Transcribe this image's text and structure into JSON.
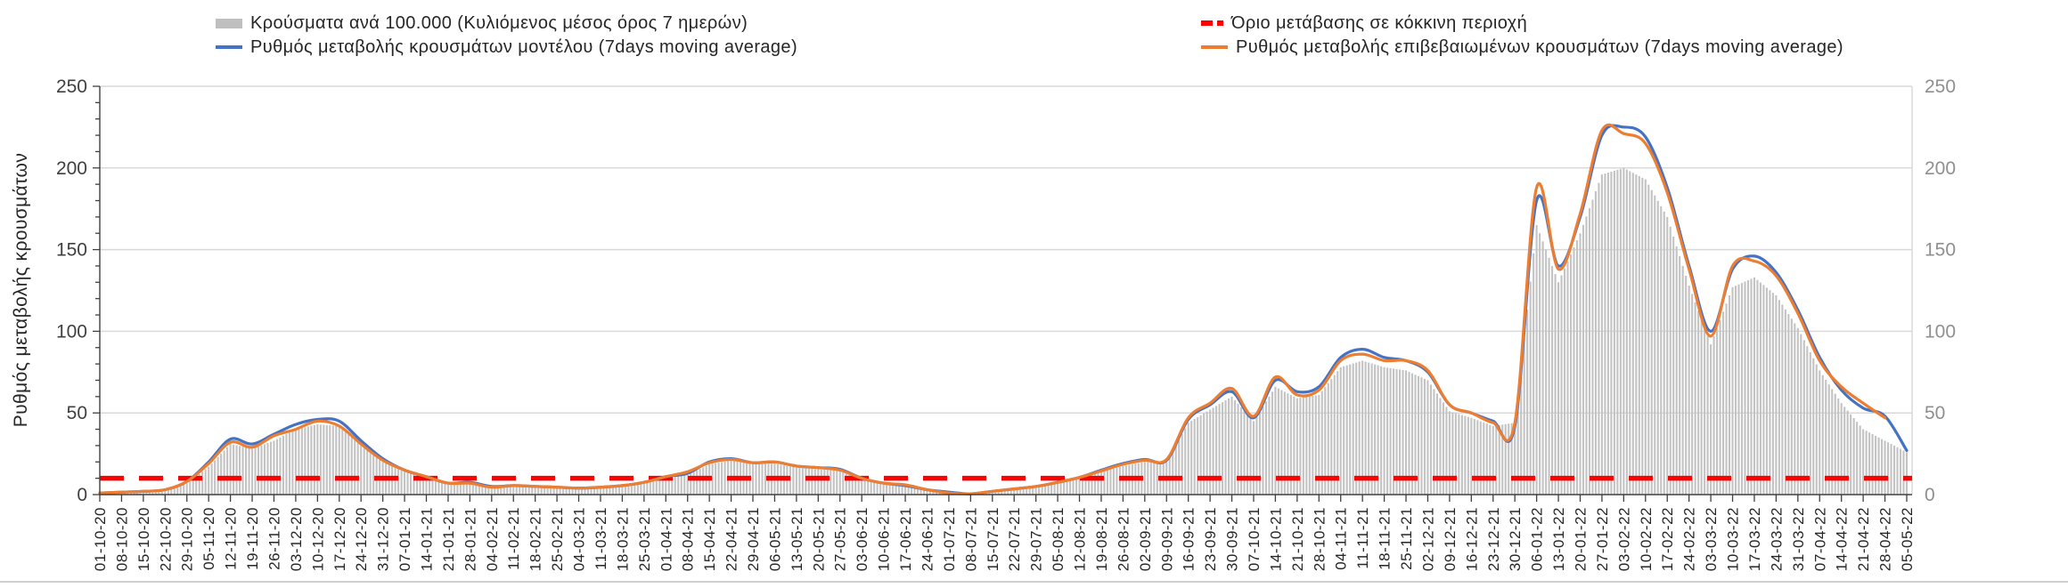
{
  "legend": {
    "items": [
      {
        "id": "cases-bars",
        "label": "Κρούσματα ανά 100.000 (Κυλιόμενος μέσος όρος 7 ημερών)",
        "swatch": "gray-bar",
        "color": "#BFBFBF"
      },
      {
        "id": "red-threshold",
        "label": "Όριο μετάβασης σε κόκκινη περιοχή",
        "swatch": "red-dashes",
        "color": "#FF0000"
      },
      {
        "id": "model-line",
        "label": "Ρυθμός μεταβολής κρουσμάτων μοντέλου (7days moving average)",
        "swatch": "blue-line",
        "color": "#4472C4"
      },
      {
        "id": "confirmed-line",
        "label": "Ρυθμός μεταβολής επιβεβαιωμένων κρουσμάτων (7days moving average)",
        "swatch": "orange-line",
        "color": "#ED7D31"
      }
    ]
  },
  "axes": {
    "ylabel": "Ρυθμός μεταβολής κρουσμάτων",
    "yticks": [
      0,
      50,
      100,
      150,
      200,
      250
    ],
    "left_tick_color": "#404040",
    "right_tick_color": "#8F8F8F",
    "date_label_color": "#262626",
    "gridline_color": "#D9D9D9",
    "axis_color": "#404040"
  },
  "chart_data": {
    "type": "bar",
    "subtype": "combo-bar-line-weekly-sampled",
    "title": "",
    "xlabel": "",
    "ylabel": "Ρυθμός μεταβολής κρουσμάτων",
    "ylim": [
      0,
      250
    ],
    "yticks": [
      0,
      50,
      100,
      150,
      200,
      250
    ],
    "grid": "horizontal",
    "legend_position": "top",
    "threshold": {
      "name": "Όριο μετάβασης σε κόκκινη περιοχή",
      "value": 10,
      "color": "#FF0000",
      "style": "dashed"
    },
    "categories": [
      "01-10-20",
      "08-10-20",
      "15-10-20",
      "22-10-20",
      "29-10-20",
      "05-11-20",
      "12-11-20",
      "19-11-20",
      "26-11-20",
      "03-12-20",
      "10-12-20",
      "17-12-20",
      "24-12-20",
      "31-12-20",
      "07-01-21",
      "14-01-21",
      "21-01-21",
      "28-01-21",
      "04-02-21",
      "11-02-21",
      "18-02-21",
      "25-02-21",
      "04-03-21",
      "11-03-21",
      "18-03-21",
      "25-03-21",
      "01-04-21",
      "08-04-21",
      "15-04-21",
      "22-04-21",
      "29-04-21",
      "06-05-21",
      "13-05-21",
      "20-05-21",
      "27-05-21",
      "03-06-21",
      "10-06-21",
      "17-06-21",
      "24-06-21",
      "01-07-21",
      "08-07-21",
      "15-07-21",
      "22-07-21",
      "29-07-21",
      "05-08-21",
      "12-08-21",
      "19-08-21",
      "26-08-21",
      "02-09-21",
      "09-09-21",
      "16-09-21",
      "23-09-21",
      "30-09-21",
      "07-10-21",
      "14-10-21",
      "21-10-21",
      "28-10-21",
      "04-11-21",
      "11-11-21",
      "18-11-21",
      "25-11-21",
      "02-12-21",
      "09-12-21",
      "16-12-21",
      "23-12-21",
      "30-12-21",
      "06-01-22",
      "13-01-22",
      "20-01-22",
      "27-01-22",
      "03-02-22",
      "10-02-22",
      "17-02-22",
      "24-02-22",
      "03-03-22",
      "10-03-22",
      "17-03-22",
      "24-03-22",
      "31-03-22",
      "07-04-22",
      "14-04-22",
      "21-04-22",
      "28-04-22",
      "05-05-22"
    ],
    "series": [
      {
        "name": "Κρούσματα ανά 100.000 (Κυλιόμενος μέσος όρος 7 ημερών)",
        "type": "bar",
        "color": "#C3C3C3",
        "values": [
          0.8,
          1.2,
          1.8,
          2.5,
          7,
          17,
          31,
          28,
          33,
          40,
          43,
          42,
          30,
          20,
          14,
          10,
          6,
          6.5,
          4,
          5,
          4.5,
          4,
          3.5,
          4,
          5,
          7,
          10,
          12,
          18.5,
          21,
          18.5,
          19,
          16.5,
          15.5,
          14.5,
          9.5,
          6.5,
          5,
          2.5,
          1,
          0.4,
          1.5,
          3,
          4.5,
          7,
          10,
          14,
          17.5,
          20,
          20,
          44,
          52,
          60,
          45,
          66,
          59,
          61,
          78,
          82,
          78,
          76,
          70,
          51,
          47,
          42,
          44,
          165,
          130,
          160,
          196,
          200,
          193,
          170,
          128,
          92,
          127,
          133,
          122,
          102,
          76,
          56,
          40,
          33,
          26
        ]
      },
      {
        "name": "Ρυθμός μεταβολής κρουσμάτων μοντέλου (7days moving average)",
        "type": "line",
        "color": "#4472C4",
        "values": [
          1,
          1.5,
          2,
          3,
          8,
          20,
          34,
          31,
          37,
          43,
          46,
          45,
          33,
          22,
          15,
          11,
          7,
          7.5,
          5,
          5.5,
          5,
          4.5,
          4,
          4.5,
          5.5,
          7.5,
          11,
          13,
          20,
          22,
          19.5,
          20,
          17.5,
          16.5,
          15.5,
          10,
          7,
          5.5,
          3,
          1.5,
          0.5,
          2,
          3.5,
          5,
          7.5,
          10.5,
          15,
          19,
          21.5,
          21,
          46,
          55,
          63,
          47,
          70,
          63,
          66,
          84,
          89,
          84,
          82,
          75,
          55,
          50,
          45,
          42,
          180,
          140,
          170,
          220,
          225,
          219,
          188,
          140,
          100,
          138,
          146,
          136,
          113,
          84,
          64,
          53,
          48,
          27
        ]
      },
      {
        "name": "Ρυθμός μεταβολής επιβεβαιωμένων κρουσμάτων (7days moving average)",
        "type": "line",
        "color": "#ED7D31",
        "values": [
          1,
          1.5,
          2,
          3,
          8,
          19,
          32,
          29,
          36,
          40,
          45,
          42,
          31,
          21,
          15,
          11,
          7,
          7,
          4.5,
          5.5,
          5,
          4.5,
          4,
          4.5,
          5.5,
          7.5,
          11,
          14,
          19.5,
          21.5,
          19.5,
          20,
          17.5,
          16.5,
          15,
          10,
          7,
          6,
          3,
          1,
          0.5,
          2,
          3.5,
          5,
          7.5,
          10.5,
          14.5,
          18.5,
          21,
          21.5,
          47,
          56,
          65,
          48,
          72,
          61,
          64,
          82,
          86,
          82,
          82,
          76,
          55,
          50,
          44,
          44,
          188,
          138,
          172,
          223,
          221,
          215,
          185,
          138,
          97,
          140,
          143,
          134,
          111,
          82,
          66,
          56,
          47,
          null
        ]
      }
    ],
    "sampling_note": "values sampled at the weekly x-axis tick dates"
  }
}
